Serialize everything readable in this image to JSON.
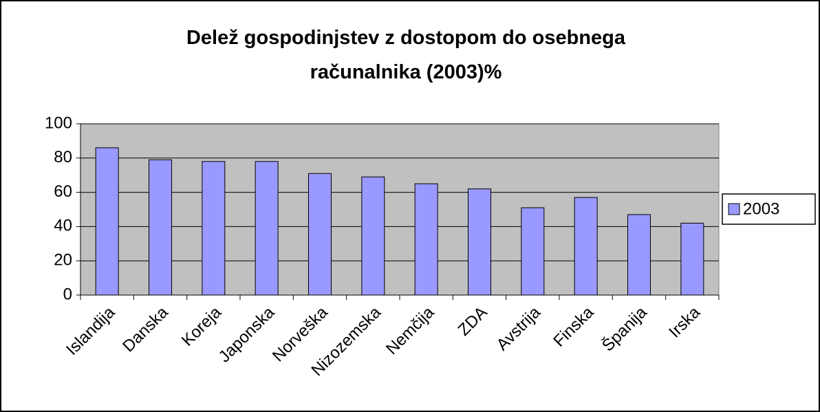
{
  "chart_data": {
    "type": "bar",
    "title": "Delež gospodinjstev z dostopom do osebnega računalnika (2003)%",
    "categories": [
      "Islandija",
      "Danska",
      "Koreja",
      "Japonska",
      "Norveška",
      "Nizozemska",
      "Nemčija",
      "ZDA",
      "Avstrija",
      "Finska",
      "Španija",
      "Irska"
    ],
    "series": [
      {
        "name": "2003",
        "color": "#9999ff",
        "values": [
          86,
          79,
          78,
          78,
          71,
          69,
          65,
          62,
          51,
          57,
          47,
          42
        ]
      }
    ],
    "ylim": [
      0,
      100
    ],
    "yticks": [
      0,
      20,
      40,
      60,
      80,
      100
    ],
    "grid": true,
    "legend": "right"
  }
}
